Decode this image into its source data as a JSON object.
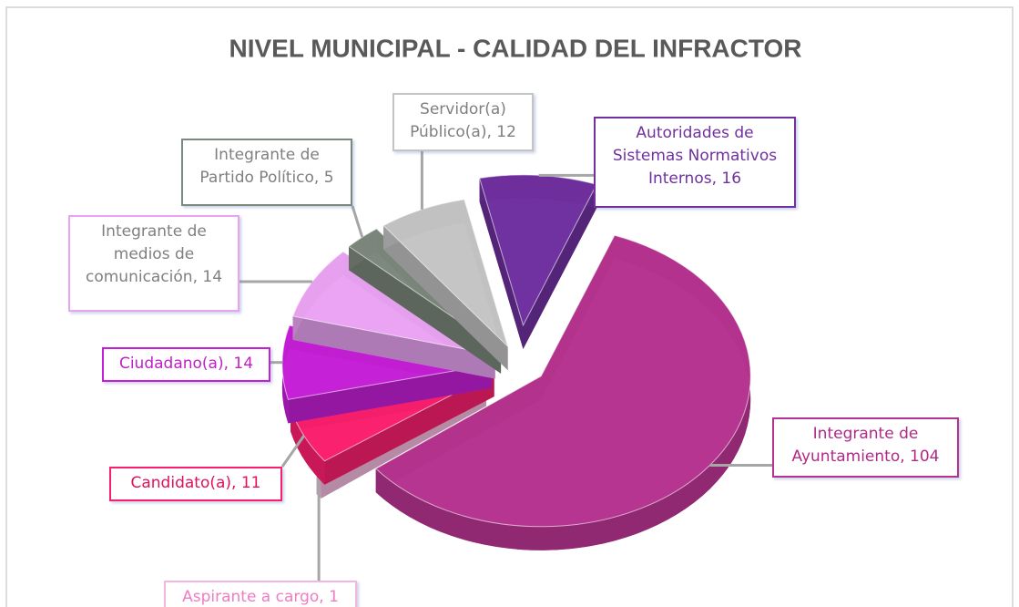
{
  "chart_data": {
    "type": "pie",
    "title": "NIVEL MUNICIPAL - CALIDAD DEL INFRACTOR",
    "values": [
      16,
      104,
      1,
      11,
      14,
      14,
      5,
      12
    ],
    "value_labels": [
      "Autoridades de Sistemas Normativos Internos, 16",
      "Integrante de Ayuntamiento, 104",
      "Aspirante a cargo, 1",
      "Candidato(a), 11",
      "Ciudadano(a), 14",
      "Integrante de medios de comunicación, 14",
      "Integrante de Partido Político, 5",
      "Servidor(a) Público(a), 12"
    ],
    "colors": [
      "#7030a0",
      "#b5338f",
      "#f2b8dc",
      "#fa1f6e",
      "#c41fd6",
      "#e9a3f2",
      "#7d887c",
      "#c4c4c4"
    ],
    "label_colors": [
      "#7030a0",
      "#b02a88",
      "#f07cc2",
      "#e0105a",
      "#c020c8",
      "#7f7f7f",
      "#7f7f7f",
      "#7f7f7f"
    ]
  }
}
